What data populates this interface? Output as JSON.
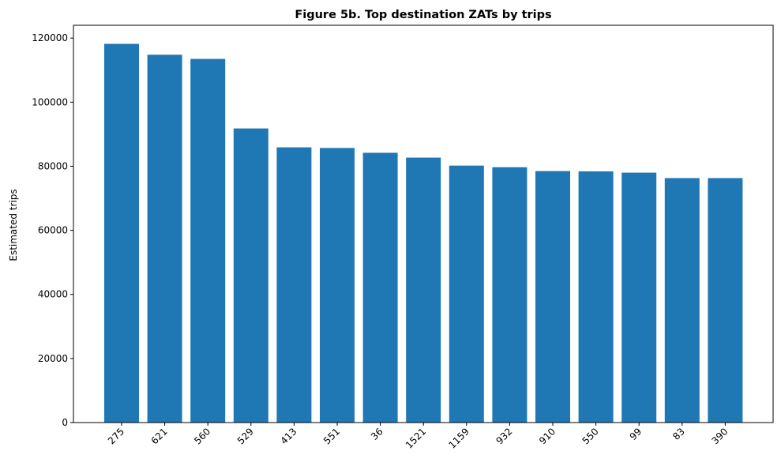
{
  "chart_data": {
    "type": "bar",
    "title": "Figure 5b. Top destination ZATs by trips",
    "xlabel": "",
    "ylabel": "Estimated trips",
    "categories": [
      "275",
      "621",
      "560",
      "529",
      "413",
      "551",
      "36",
      "1521",
      "1159",
      "932",
      "910",
      "550",
      "99",
      "83",
      "390"
    ],
    "values": [
      118200,
      114800,
      113500,
      91800,
      85900,
      85700,
      84200,
      82700,
      80200,
      79700,
      78500,
      78400,
      78000,
      76300,
      76300
    ],
    "ylim": [
      0,
      124000
    ],
    "yticks": [
      0,
      20000,
      40000,
      60000,
      80000,
      100000,
      120000
    ],
    "ytick_labels": [
      "0",
      "20000",
      "40000",
      "60000",
      "80000",
      "100000",
      "120000"
    ],
    "bar_color": "#1f77b4",
    "grid": false,
    "legend": "none"
  }
}
